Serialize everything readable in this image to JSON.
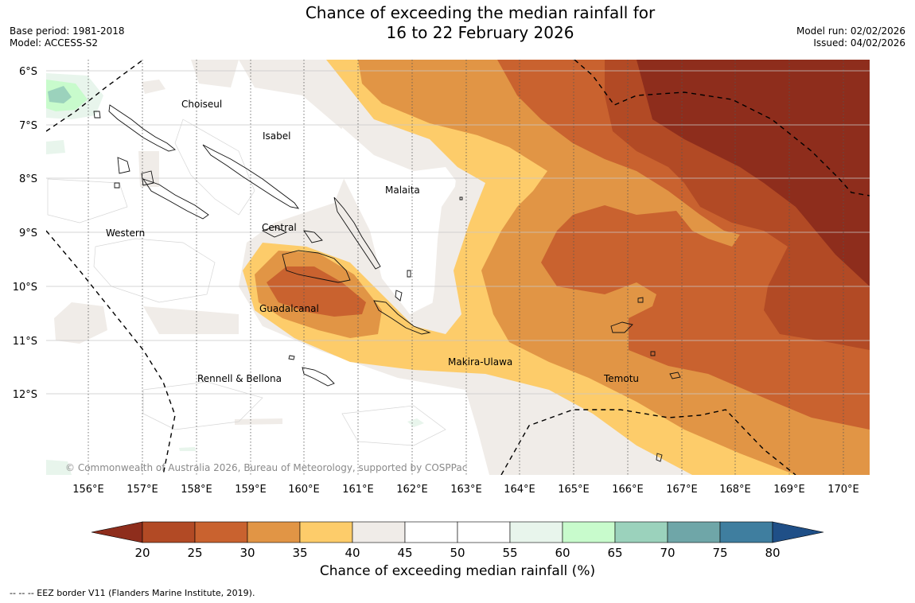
{
  "title": {
    "line1": "Chance of exceeding the median rainfall for",
    "line2": "16 to 22 February 2026"
  },
  "meta_left": {
    "base_period": "Base period: 1981-2018",
    "model": "Model: ACCESS-S2"
  },
  "meta_right": {
    "model_run": "Model run: 02/02/2026",
    "issued": "Issued: 04/02/2026"
  },
  "map": {
    "lat_labels": [
      "6°S",
      "7°S",
      "8°S",
      "9°S",
      "10°S",
      "11°S",
      "12°S"
    ],
    "lon_labels": [
      "156°E",
      "157°E",
      "158°E",
      "159°E",
      "160°E",
      "161°E",
      "162°E",
      "163°E",
      "164°E",
      "165°E",
      "166°E",
      "167°E",
      "168°E",
      "169°E",
      "170°E"
    ],
    "provinces": {
      "choiseul": "Choiseul",
      "isabel": "Isabel",
      "malaita": "Malaita",
      "western": "Western",
      "central": "Central",
      "guadalcanal": "Guadalcanal",
      "makira": "Makira-Ulawa",
      "temotu": "Temotu",
      "rennell": "Rennell & Bellona"
    },
    "copyright": "© Commonwealth of Australia 2026, Bureau of Meteorology, supported by COSPPac"
  },
  "colorbar": {
    "ticks": [
      "20",
      "25",
      "30",
      "35",
      "40",
      "45",
      "50",
      "55",
      "60",
      "65",
      "70",
      "75",
      "80"
    ],
    "colors": [
      "#b24a25",
      "#c9622f",
      "#e19545",
      "#fdcc6a",
      "#f0ece8",
      "#ffffff",
      "#ffffff",
      "#e8f5ec",
      "#c8fbcc",
      "#9bd2bc",
      "#6fa6a8",
      "#3f7e9f"
    ],
    "low_color": "#8e2d1c",
    "high_color": "#1f4f87",
    "title": "Chance of exceeding median rainfall (%)"
  },
  "footer": "--  --  -- EEZ border V11 (Flanders Marine Institute, 2019)."
}
